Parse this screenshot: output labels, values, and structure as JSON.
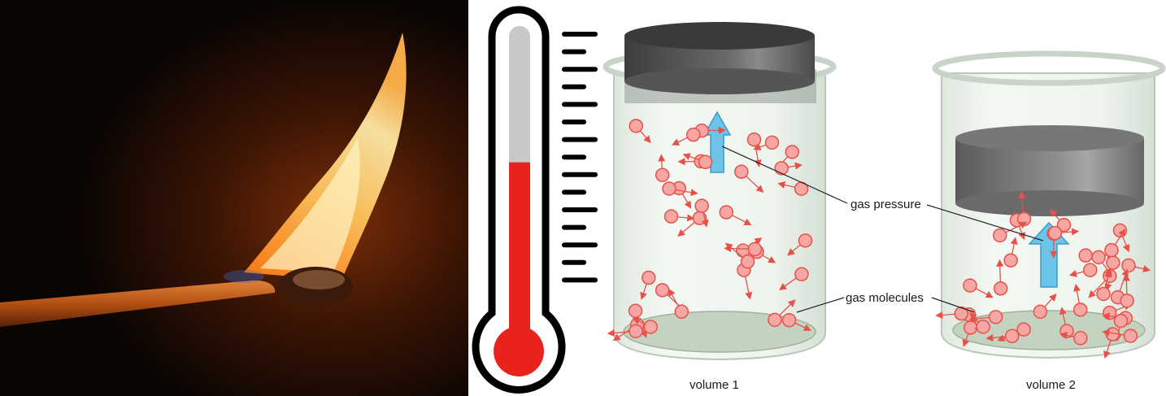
{
  "labels": {
    "gas_pressure": "gas pressure",
    "gas_molecules": "gas molecules",
    "volume_1": "volume 1",
    "volume_2": "volume 2"
  },
  "colors": {
    "flame_bg": "#0a0503",
    "flame_core": "#fff6c8",
    "flame_outer": "#ff8a1e",
    "mercury": "#e8231e",
    "thermo_empty": "#c8c8c8",
    "molecule_fill": "#f6a7a4",
    "molecule_stroke": "#e6514a",
    "pressure_arrow": "#6ec3e8",
    "glass": "#e9f0ea",
    "piston": "#555555"
  },
  "panels": {
    "photo": "burning-match",
    "thermometer": "thermometer-high-reading",
    "jar_1": "expanded-gas-jar",
    "jar_2": "compressed-gas-jar"
  },
  "thermometer": {
    "fill_level": 0.56,
    "tick_count": 15
  }
}
